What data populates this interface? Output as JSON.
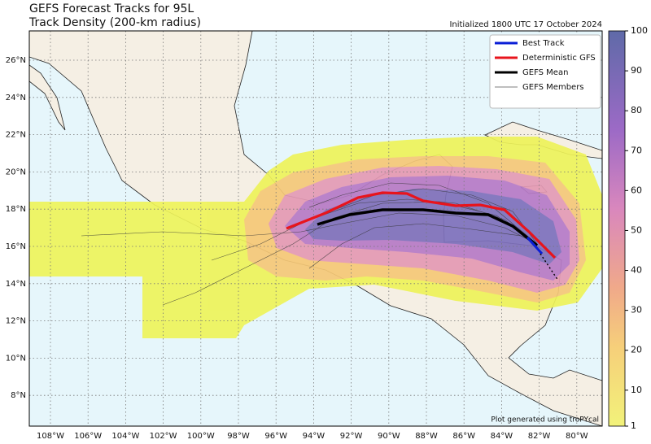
{
  "header": {
    "title": "GEFS Forecast Tracks for 95L",
    "subtitle": "Track Density (200-km radius)",
    "initialized": "Initialized 1800 UTC 17 October 2024"
  },
  "legend": {
    "items": [
      "Best Track",
      "Deterministic GFS",
      "GEFS Mean",
      "GEFS Members"
    ]
  },
  "axes": {
    "lon_labels": [
      "108°W",
      "106°W",
      "104°W",
      "102°W",
      "100°W",
      "98°W",
      "96°W",
      "94°W",
      "92°W",
      "90°W",
      "88°W",
      "86°W",
      "84°W",
      "82°W",
      "80°W"
    ],
    "lat_labels": [
      "26°N",
      "24°N",
      "22°N",
      "20°N",
      "18°N",
      "16°N",
      "14°N",
      "12°N",
      "10°N",
      "8°N"
    ]
  },
  "colorbar": {
    "lim": [
      1,
      100
    ],
    "ticks": [
      1,
      10,
      20,
      30,
      40,
      50,
      60,
      70,
      80,
      90,
      100
    ]
  },
  "footer": {
    "credit": "Plot generated using troPYcal"
  }
}
